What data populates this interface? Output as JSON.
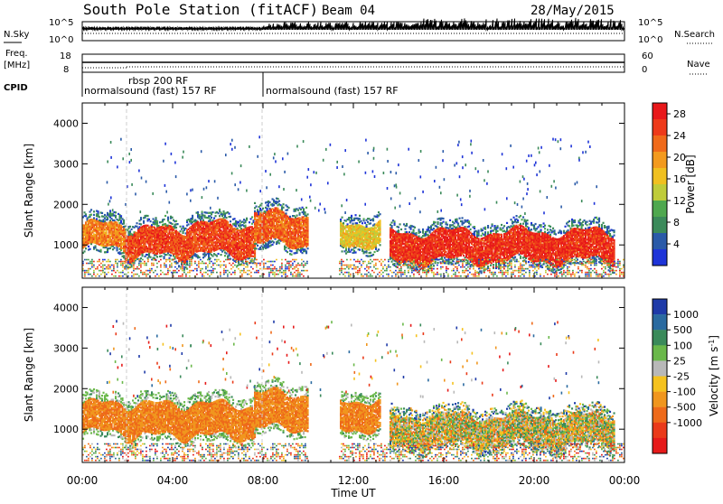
{
  "header": {
    "title": "South Pole Station (fitACF)",
    "beam": "Beam 04",
    "date": "28/May/2015"
  },
  "top_panels": {
    "nsky_label": "N.Sky",
    "nsky_ticks": [
      "10^5",
      "10^0"
    ],
    "nsearch_label": "N.Search",
    "nsearch_ticks": [
      "10^5",
      "10^0"
    ],
    "freq_label": [
      "Freq.",
      "[MHz]"
    ],
    "freq_ticks": [
      "18",
      "8"
    ],
    "nave_label": "Nave",
    "nave_ticks": [
      "60",
      "0"
    ],
    "cpid_label": "CPID",
    "cpid_segments": [
      {
        "start": 0.0,
        "end": 2.0,
        "label": "normalsound (fast) 157 RF"
      },
      {
        "start": 2.0,
        "end": 8.0,
        "label": "rbsp 200 RF"
      },
      {
        "start": 8.0,
        "end": 24.0,
        "label": "normalsound (fast) 157 RF"
      }
    ]
  },
  "colors": {
    "power_scale": [
      "#1e34d8",
      "#2a5aa8",
      "#3b8a5a",
      "#4fa84f",
      "#bfcc3a",
      "#f0c020",
      "#f39a1e",
      "#f06a1a",
      "#ee3a1a",
      "#e8181a"
    ],
    "velocity_scale": [
      "#1e3aa8",
      "#2a6aa0",
      "#3a8a5a",
      "#6ab84a",
      "#b8b8b8",
      "#f5c21e",
      "#f0961e",
      "#ee6a1a",
      "#ea3a1a",
      "#e61a1a"
    ]
  },
  "chart_data": [
    {
      "type": "heatmap",
      "title": "",
      "xlabel": "Time UT",
      "ylabel": "Slant Range [km]",
      "x_ticks": [
        "00:00",
        "04:00",
        "08:00",
        "12:00",
        "16:00",
        "20:00",
        "00:00"
      ],
      "xlim": [
        0,
        24
      ],
      "y_ticks": [
        1000,
        2000,
        3000,
        4000
      ],
      "ylim": [
        180,
        4500
      ],
      "colorbar_label": "Power [dB]",
      "colorbar_ticks": [
        4,
        8,
        12,
        16,
        20,
        24,
        28
      ],
      "colorbar_range": [
        0,
        30
      ],
      "echo_bands": [
        {
          "t0": 0.0,
          "t1": 1.9,
          "range_low": 900,
          "range_high": 1500,
          "value": 22
        },
        {
          "t0": 1.9,
          "t1": 4.6,
          "range_low": 700,
          "range_high": 1350,
          "value": 26
        },
        {
          "t0": 4.6,
          "t1": 7.6,
          "range_low": 750,
          "range_high": 1500,
          "value": 26
        },
        {
          "t0": 7.6,
          "t1": 10.0,
          "range_low": 1000,
          "range_high": 1750,
          "value": 24
        },
        {
          "t0": 11.4,
          "t1": 13.2,
          "range_low": 1000,
          "range_high": 1550,
          "value": 16
        },
        {
          "t0": 13.6,
          "t1": 23.5,
          "range_low": 600,
          "range_high": 1300,
          "value": 28
        }
      ]
    },
    {
      "type": "heatmap",
      "title": "",
      "xlabel": "Time UT",
      "ylabel": "Slant Range [km]",
      "x_ticks": [
        "00:00",
        "04:00",
        "08:00",
        "12:00",
        "16:00",
        "20:00",
        "00:00"
      ],
      "xlim": [
        0,
        24
      ],
      "y_ticks": [
        1000,
        2000,
        3000,
        4000
      ],
      "ylim": [
        180,
        4500
      ],
      "colorbar_label": "Velocity [m s^-1]",
      "colorbar_ticks": [
        "1000",
        "500",
        "100",
        "25",
        "-25",
        "-100",
        "-500",
        "-1000"
      ],
      "echo_bands": [
        {
          "t0": 0.0,
          "t1": 1.9,
          "range_low": 900,
          "range_high": 1600,
          "value": -150
        },
        {
          "t0": 1.9,
          "t1": 4.6,
          "range_low": 800,
          "range_high": 1600,
          "value": -200
        },
        {
          "t0": 4.6,
          "t1": 7.6,
          "range_low": 800,
          "range_high": 1600,
          "value": -200
        },
        {
          "t0": 7.6,
          "t1": 10.0,
          "range_low": 1000,
          "range_high": 1850,
          "value": -250
        },
        {
          "t0": 11.4,
          "t1": 13.2,
          "range_low": 1000,
          "range_high": 1700,
          "value": -200
        },
        {
          "t0": 13.6,
          "t1": 23.5,
          "range_low": 600,
          "range_high": 1300,
          "value": 0
        }
      ]
    }
  ]
}
